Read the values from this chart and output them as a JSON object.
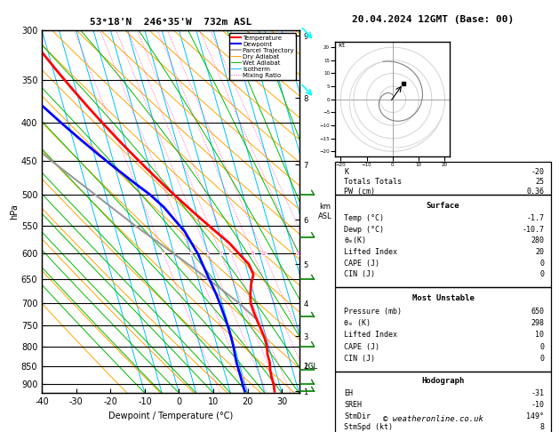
{
  "title_left": "53°18'N  246°35'W  732m ASL",
  "title_right": "20.04.2024 12GMT (Base: 00)",
  "xlabel": "Dewpoint / Temperature (°C)",
  "ylabel_left": "hPa",
  "pressure_levels": [
    300,
    350,
    400,
    450,
    500,
    550,
    600,
    650,
    700,
    750,
    800,
    850,
    900
  ],
  "temp_min": -40,
  "temp_max": 35,
  "pressure_min": 300,
  "pressure_max": 925,
  "skew_factor": 30,
  "isotherm_temps": [
    -40,
    -35,
    -30,
    -25,
    -20,
    -15,
    -10,
    -5,
    0,
    5,
    10,
    15,
    20,
    25,
    30,
    35
  ],
  "isotherm_color": "#00bfff",
  "dry_adiabat_color": "#ffa500",
  "wet_adiabat_color": "#00bb00",
  "mixing_ratio_color": "#ff44aa",
  "temperature_color": "#ff0000",
  "dewpoint_color": "#0000ff",
  "parcel_color": "#999999",
  "bg_color": "#ffffff",
  "temperature_data": {
    "pressure": [
      300,
      320,
      340,
      360,
      380,
      400,
      420,
      440,
      460,
      480,
      500,
      520,
      540,
      560,
      580,
      600,
      620,
      640,
      660,
      680,
      700,
      720,
      740,
      760,
      780,
      800,
      820,
      840,
      860,
      880,
      900,
      920
    ],
    "temp": [
      -44,
      -42,
      -39,
      -36,
      -33,
      -30,
      -27,
      -24,
      -21,
      -18,
      -15,
      -12,
      -9,
      -6,
      -3,
      -1,
      1,
      1.5,
      0,
      -1,
      -1.7,
      -1.5,
      -1.2,
      -0.8,
      -0.5,
      -0.5,
      -1,
      -1,
      -1.5,
      -1.7,
      -1.7,
      -2
    ]
  },
  "dewpoint_data": {
    "pressure": [
      300,
      320,
      340,
      360,
      380,
      400,
      420,
      440,
      460,
      480,
      500,
      520,
      540,
      560,
      580,
      600,
      620,
      640,
      660,
      680,
      700,
      720,
      740,
      760,
      780,
      800,
      820,
      840,
      860,
      880,
      900,
      920
    ],
    "temp": [
      -60,
      -57,
      -54,
      -50,
      -46,
      -42,
      -38,
      -34,
      -30,
      -26,
      -22,
      -19,
      -17,
      -15,
      -14,
      -13,
      -12.5,
      -12,
      -11.5,
      -11,
      -10.7,
      -10.5,
      -10.3,
      -10.2,
      -10.2,
      -10.3,
      -10.5,
      -10.7,
      -10.7,
      -10.7,
      -10.7,
      -10.7
    ]
  },
  "parcel_data": {
    "pressure": [
      732,
      700,
      650,
      600,
      550,
      500,
      450,
      400,
      350,
      300
    ],
    "temp": [
      -1.7,
      -5,
      -12,
      -20,
      -29,
      -38,
      -48,
      -58,
      -68,
      -78
    ]
  },
  "mixing_ratio_lines": [
    1,
    2,
    3,
    4,
    5,
    8,
    10,
    20,
    25
  ],
  "km_ticks": {
    "pressure": [
      920,
      850,
      775,
      700,
      620,
      540,
      455,
      370,
      305
    ],
    "km": [
      1,
      2,
      3,
      4,
      5,
      6,
      7,
      8,
      9
    ]
  },
  "lcl_pressure": 852,
  "lcl_label": "LCL",
  "stats_top": [
    [
      "K",
      "-20"
    ],
    [
      "Totals Totals",
      "25"
    ],
    [
      "PW (cm)",
      "0.36"
    ]
  ],
  "surface_rows": [
    [
      "Temp (°C)",
      "-1.7"
    ],
    [
      "Dewp (°C)",
      "-10.7"
    ],
    [
      "θₑ(K)",
      "280"
    ],
    [
      "Lifted Index",
      "20"
    ],
    [
      "CAPE (J)",
      "0"
    ],
    [
      "CIN (J)",
      "0"
    ]
  ],
  "mu_rows": [
    [
      "Pressure (mb)",
      "650"
    ],
    [
      "θₑ (K)",
      "298"
    ],
    [
      "Lifted Index",
      "10"
    ],
    [
      "CAPE (J)",
      "0"
    ],
    [
      "CIN (J)",
      "0"
    ]
  ],
  "hodo_rows": [
    [
      "EH",
      "-31"
    ],
    [
      "SREH",
      "-10"
    ],
    [
      "StmDir",
      "149°"
    ],
    [
      "StmSpd (kt)",
      "8"
    ]
  ],
  "legend_entries": [
    [
      "Temperature",
      "#ff0000",
      "solid",
      1.5
    ],
    [
      "Dewpoint",
      "#0000ff",
      "solid",
      1.5
    ],
    [
      "Parcel Trajectory",
      "#999999",
      "solid",
      1.2
    ],
    [
      "Dry Adiabat",
      "#ffa500",
      "solid",
      0.7
    ],
    [
      "Wet Adiabat",
      "#00bb00",
      "solid",
      0.7
    ],
    [
      "Isotherm",
      "#00bfff",
      "solid",
      0.7
    ],
    [
      "Mixing Ratio",
      "#ff44aa",
      "dotted",
      0.7
    ]
  ],
  "cyan_wind_pressures": [
    310,
    370
  ],
  "green_wind_pressures": [
    500,
    570,
    650,
    730,
    800,
    860,
    900,
    920
  ],
  "footer": "© weatheronline.co.uk"
}
